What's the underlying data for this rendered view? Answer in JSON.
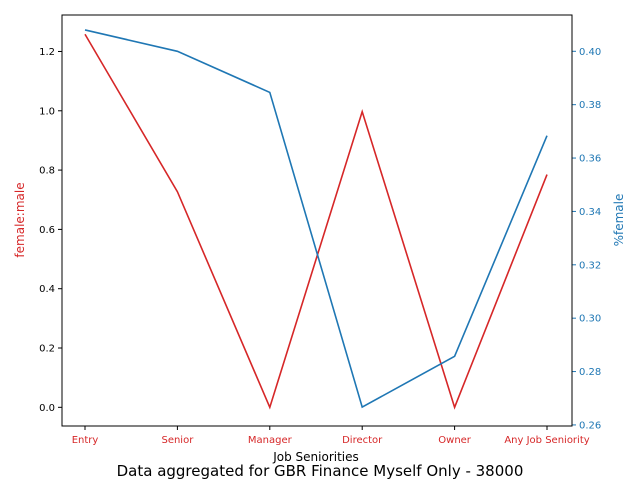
{
  "chart_data": {
    "type": "line",
    "caption": "Data aggregated for GBR Finance Myself Only - 38000",
    "categories": [
      "Entry",
      "Senior",
      "Manager",
      "Director",
      "Owner",
      "Any Job Seniority"
    ],
    "xlabel": "Job Seniorities",
    "colors": {
      "left": "#d62728",
      "right": "#1f77b4"
    },
    "left_axis": {
      "label": "female:male",
      "ylim": [
        -0.063,
        1.323
      ],
      "ticks": [
        "0.0",
        "0.2",
        "0.4",
        "0.6",
        "0.8",
        "1.0",
        "1.2"
      ],
      "values": [
        1.258,
        0.727,
        0.0,
        0.997,
        0.0,
        0.785
      ]
    },
    "right_axis": {
      "label": "%female",
      "ylim": [
        0.2596,
        0.4136
      ],
      "ticks": [
        "0.26",
        "0.28",
        "0.30",
        "0.32",
        "0.34",
        "0.36",
        "0.38",
        "0.40"
      ],
      "values": [
        0.408,
        0.4,
        0.3846,
        0.2667,
        0.2857,
        0.3684
      ]
    }
  }
}
